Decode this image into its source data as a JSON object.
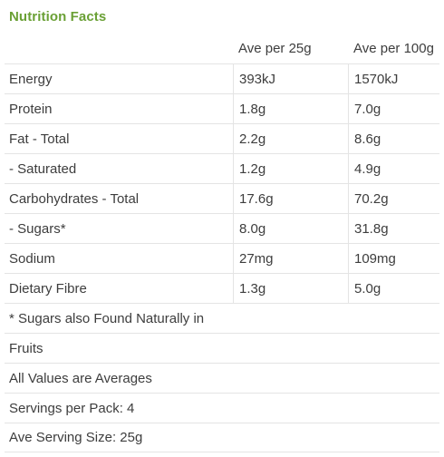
{
  "title": "Nutrition Facts",
  "headers": {
    "col1": "",
    "col2": "Ave per 25g",
    "col3": "Ave per 100g"
  },
  "rows": [
    {
      "label": "Energy",
      "per25": "393kJ",
      "per100": "1570kJ"
    },
    {
      "label": "Protein",
      "per25": "1.8g",
      "per100": "7.0g"
    },
    {
      "label": "Fat - Total",
      "per25": "2.2g",
      "per100": "8.6g"
    },
    {
      "label": "- Saturated",
      "per25": "1.2g",
      "per100": "4.9g"
    },
    {
      "label": "Carbohydrates - Total",
      "per25": "17.6g",
      "per100": "70.2g"
    },
    {
      "label": "- Sugars*",
      "per25": "8.0g",
      "per100": "31.8g"
    },
    {
      "label": "Sodium",
      "per25": "27mg",
      "per100": "109mg"
    },
    {
      "label": "Dietary Fibre",
      "per25": "1.3g",
      "per100": "5.0g"
    }
  ],
  "notes": [
    "* Sugars also Found Naturally in",
    "Fruits",
    "All Values are Averages",
    "Servings per Pack: 4",
    "Ave Serving Size: 25g"
  ]
}
